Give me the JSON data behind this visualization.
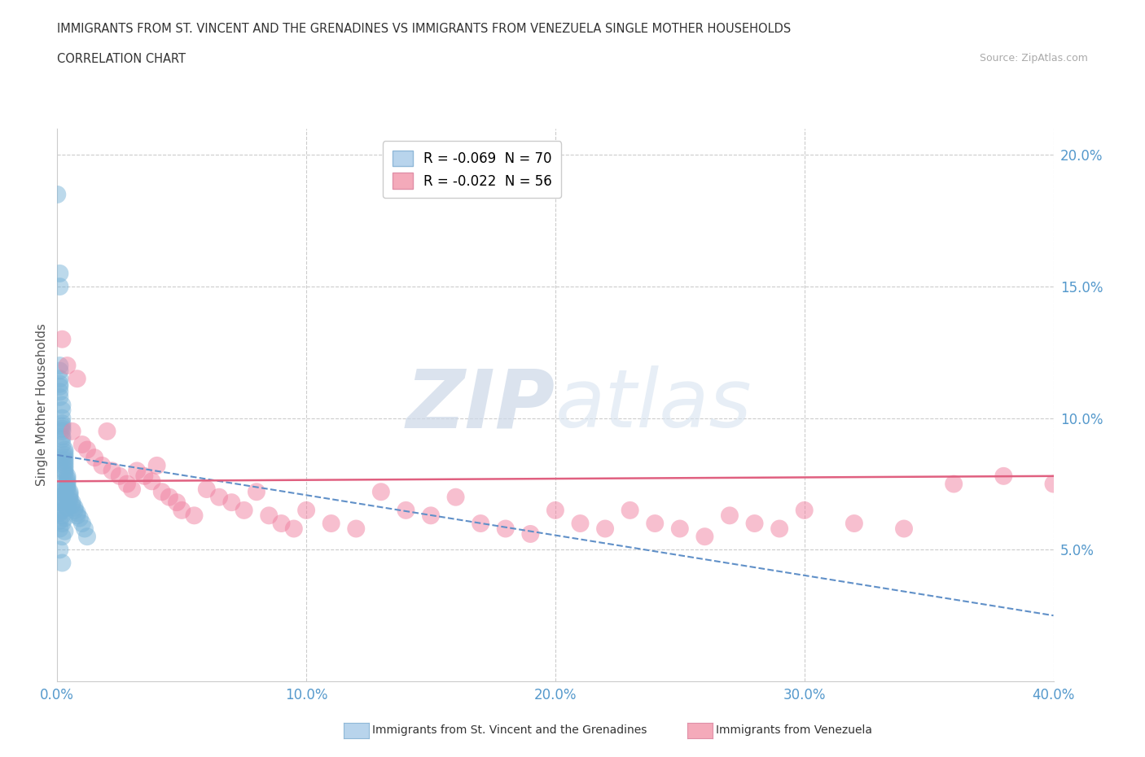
{
  "title_line1": "IMMIGRANTS FROM ST. VINCENT AND THE GRENADINES VS IMMIGRANTS FROM VENEZUELA SINGLE MOTHER HOUSEHOLDS",
  "title_line2": "CORRELATION CHART",
  "source_text": "Source: ZipAtlas.com",
  "ylabel": "Single Mother Households",
  "watermark_zip": "ZIP",
  "watermark_atlas": "atlas",
  "legend_top": [
    {
      "label": "R = -0.069  N = 70",
      "color": "#b8d4ec"
    },
    {
      "label": "R = -0.022  N = 56",
      "color": "#f4aaba"
    }
  ],
  "legend_bottom": [
    {
      "label": "Immigrants from St. Vincent and the Grenadines",
      "color": "#b8d4ec"
    },
    {
      "label": "Immigrants from Venezuela",
      "color": "#f4aaba"
    }
  ],
  "blue_scatter_x": [
    0.0,
    0.001,
    0.001,
    0.001,
    0.001,
    0.001,
    0.001,
    0.001,
    0.001,
    0.001,
    0.002,
    0.002,
    0.002,
    0.002,
    0.002,
    0.002,
    0.002,
    0.002,
    0.002,
    0.002,
    0.003,
    0.003,
    0.003,
    0.003,
    0.003,
    0.003,
    0.003,
    0.003,
    0.003,
    0.003,
    0.004,
    0.004,
    0.004,
    0.004,
    0.004,
    0.004,
    0.005,
    0.005,
    0.005,
    0.005,
    0.006,
    0.006,
    0.007,
    0.007,
    0.008,
    0.008,
    0.009,
    0.01,
    0.011,
    0.012,
    0.0,
    0.001,
    0.002,
    0.003,
    0.001,
    0.002,
    0.001,
    0.003,
    0.004,
    0.002,
    0.001,
    0.002,
    0.003,
    0.001,
    0.002,
    0.001,
    0.003,
    0.002,
    0.001,
    0.002
  ],
  "blue_scatter_y": [
    0.185,
    0.155,
    0.15,
    0.12,
    0.118,
    0.115,
    0.113,
    0.112,
    0.11,
    0.108,
    0.105,
    0.103,
    0.1,
    0.098,
    0.097,
    0.096,
    0.095,
    0.093,
    0.092,
    0.09,
    0.088,
    0.087,
    0.086,
    0.085,
    0.084,
    0.083,
    0.082,
    0.081,
    0.08,
    0.079,
    0.078,
    0.077,
    0.076,
    0.075,
    0.074,
    0.073,
    0.072,
    0.071,
    0.07,
    0.069,
    0.068,
    0.067,
    0.066,
    0.065,
    0.064,
    0.063,
    0.062,
    0.06,
    0.058,
    0.055,
    0.075,
    0.073,
    0.072,
    0.071,
    0.07,
    0.069,
    0.068,
    0.067,
    0.066,
    0.065,
    0.064,
    0.063,
    0.062,
    0.061,
    0.06,
    0.058,
    0.057,
    0.055,
    0.05,
    0.045
  ],
  "blue_scatter_color": "#7ab4d8",
  "blue_scatter_alpha": 0.5,
  "pink_scatter_x": [
    0.002,
    0.004,
    0.006,
    0.008,
    0.01,
    0.012,
    0.015,
    0.018,
    0.02,
    0.022,
    0.025,
    0.028,
    0.03,
    0.032,
    0.035,
    0.038,
    0.04,
    0.042,
    0.045,
    0.048,
    0.05,
    0.055,
    0.06,
    0.065,
    0.07,
    0.075,
    0.08,
    0.085,
    0.09,
    0.095,
    0.1,
    0.11,
    0.12,
    0.13,
    0.14,
    0.15,
    0.16,
    0.17,
    0.18,
    0.19,
    0.2,
    0.21,
    0.22,
    0.23,
    0.24,
    0.25,
    0.26,
    0.27,
    0.28,
    0.29,
    0.3,
    0.32,
    0.34,
    0.36,
    0.38,
    0.4
  ],
  "pink_scatter_y": [
    0.13,
    0.12,
    0.095,
    0.115,
    0.09,
    0.088,
    0.085,
    0.082,
    0.095,
    0.08,
    0.078,
    0.075,
    0.073,
    0.08,
    0.078,
    0.076,
    0.082,
    0.072,
    0.07,
    0.068,
    0.065,
    0.063,
    0.073,
    0.07,
    0.068,
    0.065,
    0.072,
    0.063,
    0.06,
    0.058,
    0.065,
    0.06,
    0.058,
    0.072,
    0.065,
    0.063,
    0.07,
    0.06,
    0.058,
    0.056,
    0.065,
    0.06,
    0.058,
    0.065,
    0.06,
    0.058,
    0.055,
    0.063,
    0.06,
    0.058,
    0.065,
    0.06,
    0.058,
    0.075,
    0.078,
    0.075
  ],
  "pink_scatter_color": "#f080a0",
  "pink_scatter_alpha": 0.5,
  "blue_trend_x0": 0.0,
  "blue_trend_y0": 0.086,
  "blue_trend_x1": 0.4,
  "blue_trend_y1": 0.025,
  "blue_trend_color": "#6090c8",
  "pink_trend_x0": 0.0,
  "pink_trend_y0": 0.076,
  "pink_trend_x1": 0.4,
  "pink_trend_y1": 0.078,
  "pink_trend_color": "#e06080",
  "grid_color": "#cccccc",
  "background_color": "#ffffff",
  "xlim": [
    0.0,
    0.4
  ],
  "ylim": [
    0.0,
    0.21
  ],
  "yticks": [
    0.05,
    0.1,
    0.15,
    0.2
  ],
  "xticks": [
    0.0,
    0.1,
    0.2,
    0.3,
    0.4
  ],
  "tick_color": "#5599cc",
  "title_color": "#333333",
  "source_color": "#aaaaaa"
}
